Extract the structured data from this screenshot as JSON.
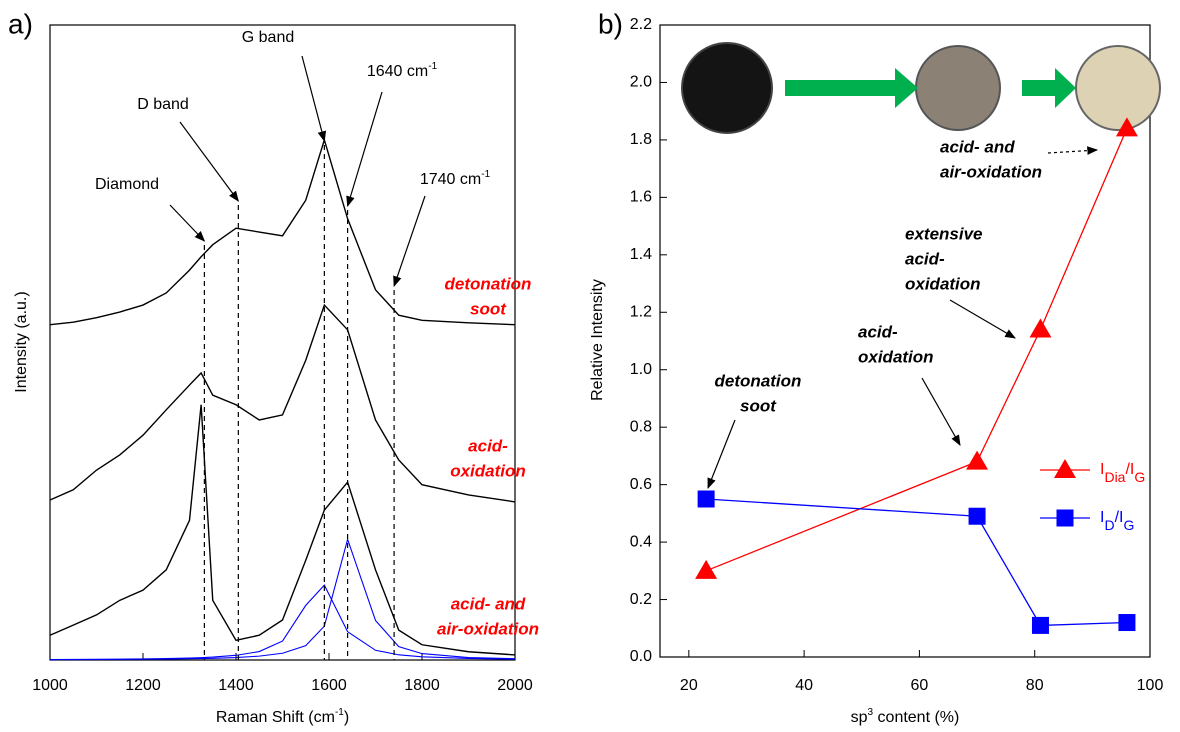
{
  "chart_data": [
    {
      "type": "line",
      "panel_label": "a)",
      "x_label": [
        "Raman Shift (cm",
        "-1",
        ")"
      ],
      "y_label": "Intensity (a.u.)",
      "xlim": [
        1000,
        2000
      ],
      "xticks": [
        1000,
        1200,
        1400,
        1600,
        1800,
        2000
      ],
      "ylim": [
        0,
        100
      ],
      "x": [
        1000,
        1050,
        1100,
        1150,
        1200,
        1250,
        1300,
        1325,
        1350,
        1400,
        1450,
        1500,
        1550,
        1590,
        1640,
        1700,
        1750,
        1800,
        1900,
        2000
      ],
      "label_color": "#ff0000",
      "series": [
        {
          "name": [
            "detonation",
            "soot"
          ],
          "color": "#000000",
          "values": [
            52.8,
            53.2,
            53.9,
            54.8,
            55.9,
            57.8,
            61.4,
            63.5,
            65.4,
            68.0,
            67.4,
            66.8,
            72.4,
            81.9,
            69.5,
            58.3,
            54.3,
            53.5,
            53.1,
            52.8
          ]
        },
        {
          "name": [
            "acid-",
            "oxidation"
          ],
          "color": "#000000",
          "values": [
            25.2,
            26.8,
            29.9,
            32.3,
            35.4,
            39.4,
            43.3,
            45.2,
            41.7,
            40.2,
            37.8,
            38.6,
            47.2,
            55.9,
            52.0,
            37.8,
            31.5,
            27.6,
            26.0,
            24.9
          ]
        },
        {
          "name": [
            "acid- and",
            "air-oxidation"
          ],
          "color": "#000000",
          "values": [
            3.9,
            5.5,
            7.1,
            9.4,
            11.0,
            14.2,
            22.0,
            40.2,
            9.4,
            3.1,
            3.9,
            6.3,
            15.7,
            23.6,
            28.0,
            14.2,
            4.7,
            2.4,
            1.3,
            0.8
          ]
        },
        {
          "color": "#0000ff",
          "values": [
            0.07,
            0.09,
            0.11,
            0.13,
            0.17,
            0.23,
            0.31,
            0.37,
            0.46,
            0.73,
            1.33,
            2.98,
            8.6,
            11.8,
            4.46,
            1.53,
            0.81,
            0.5,
            0.24,
            0.14
          ]
        },
        {
          "color": "#0000ff",
          "values": [
            0.06,
            0.07,
            0.08,
            0.1,
            0.12,
            0.15,
            0.2,
            0.23,
            0.27,
            0.39,
            0.61,
            1.06,
            2.26,
            5.33,
            19.0,
            6.23,
            2.11,
            1.01,
            0.38,
            0.2
          ]
        }
      ],
      "annotations": [
        {
          "text": [
            "Diamond"
          ],
          "x": 1332
        },
        {
          "text": [
            "D band"
          ],
          "x": 1405
        },
        {
          "text": [
            "G band"
          ],
          "x": 1590
        },
        {
          "text": [
            "1640 cm",
            "-1"
          ],
          "x": 1640
        },
        {
          "text": [
            "1740 cm",
            "-1"
          ],
          "x": 1740
        }
      ]
    },
    {
      "type": "line",
      "panel_label": "b)",
      "x_label": [
        "sp",
        "3",
        " content (%)"
      ],
      "y_label": "Relative Intensity",
      "xlim": [
        15,
        100
      ],
      "xticks": [
        20,
        40,
        60,
        80,
        100
      ],
      "ylim": [
        0,
        2.2
      ],
      "yticks": [
        {
          "value": 0,
          "label": "0.0"
        },
        0.2,
        0.4,
        0.6,
        0.8,
        {
          "value": 1,
          "label": "1.0"
        },
        1.2,
        1.4,
        1.6,
        1.8,
        {
          "value": 2,
          "label": "2.0"
        },
        2.2
      ],
      "legend": "right",
      "series": [
        {
          "name": [
            "I",
            "Dia",
            "/I",
            "G"
          ],
          "color": "#ff0000",
          "marker": "triangle",
          "x": [
            23,
            70,
            81,
            96
          ],
          "values": [
            0.3,
            0.68,
            1.14,
            1.84
          ]
        },
        {
          "name": [
            "I",
            "D",
            "/I",
            "G"
          ],
          "color": "#0000ff",
          "marker": "square",
          "x": [
            23,
            70,
            81,
            96
          ],
          "values": [
            0.55,
            0.49,
            0.11,
            0.12
          ]
        }
      ],
      "annotations": [
        {
          "text": [
            "detonation",
            "soot"
          ]
        },
        {
          "text": [
            "acid-",
            "oxidation"
          ]
        },
        {
          "text": [
            "extensive",
            "acid-",
            "oxidation"
          ]
        },
        {
          "text": [
            "acid- and",
            "air-oxidation"
          ]
        }
      ]
    }
  ]
}
